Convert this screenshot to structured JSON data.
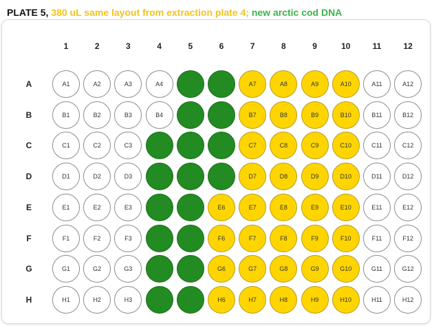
{
  "title": {
    "plate": "PLATE 5,",
    "note_yellow": "380 uL same layout from extraction plate 4;",
    "note_green": "new arctic cod DNA"
  },
  "colors": {
    "empty": "#ffffff",
    "yellow": "#ffd500",
    "green": "#228b22",
    "title_yellow": "#f3c419",
    "title_green": "#3cb44b"
  },
  "columns": [
    "1",
    "2",
    "3",
    "4",
    "5",
    "6",
    "7",
    "8",
    "9",
    "10",
    "11",
    "12"
  ],
  "rows": [
    "A",
    "B",
    "C",
    "D",
    "E",
    "F",
    "G",
    "H"
  ],
  "wells": {
    "A": [
      "empty",
      "empty",
      "empty",
      "empty",
      "green",
      "green",
      "yellow",
      "yellow",
      "yellow",
      "yellow",
      "empty",
      "empty"
    ],
    "B": [
      "empty",
      "empty",
      "empty",
      "empty",
      "green",
      "green",
      "yellow",
      "yellow",
      "yellow",
      "yellow",
      "empty",
      "empty"
    ],
    "C": [
      "empty",
      "empty",
      "empty",
      "green",
      "green",
      "green",
      "yellow",
      "yellow",
      "yellow",
      "yellow",
      "empty",
      "empty"
    ],
    "D": [
      "empty",
      "empty",
      "empty",
      "green",
      "green",
      "green",
      "yellow",
      "yellow",
      "yellow",
      "yellow",
      "empty",
      "empty"
    ],
    "E": [
      "empty",
      "empty",
      "empty",
      "green",
      "green",
      "yellow",
      "yellow",
      "yellow",
      "yellow",
      "yellow",
      "empty",
      "empty"
    ],
    "F": [
      "empty",
      "empty",
      "empty",
      "green",
      "green",
      "yellow",
      "yellow",
      "yellow",
      "yellow",
      "yellow",
      "empty",
      "empty"
    ],
    "G": [
      "empty",
      "empty",
      "empty",
      "green",
      "green",
      "yellow",
      "yellow",
      "yellow",
      "yellow",
      "yellow",
      "empty",
      "empty"
    ],
    "H": [
      "empty",
      "empty",
      "empty",
      "green",
      "green",
      "yellow",
      "yellow",
      "yellow",
      "yellow",
      "yellow",
      "empty",
      "empty"
    ]
  }
}
